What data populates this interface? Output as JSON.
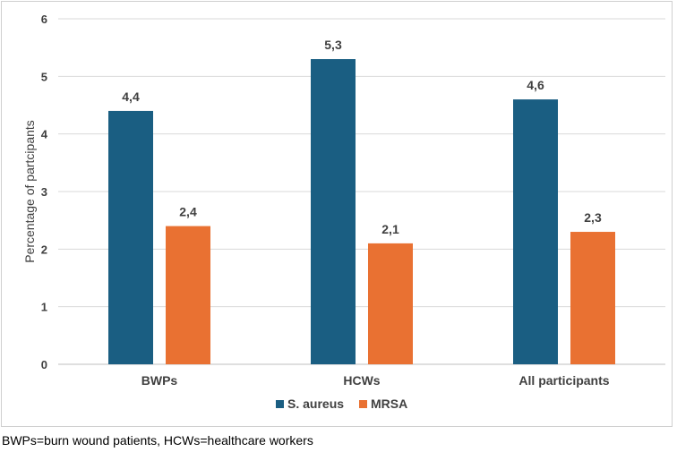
{
  "chart_data": {
    "type": "bar",
    "categories": [
      "BWPs",
      "HCWs",
      "All participants"
    ],
    "series": [
      {
        "name": "S. aureus",
        "values": [
          4.4,
          5.3,
          4.6
        ],
        "labels": [
          "4,4",
          "5,3",
          "4,6"
        ],
        "color": "#1a5e82"
      },
      {
        "name": "MRSA",
        "values": [
          2.4,
          2.1,
          2.3
        ],
        "labels": [
          "2,4",
          "2,1",
          "2,3"
        ],
        "color": "#e97132"
      }
    ],
    "ylabel": "Percentage of partcipants",
    "ylim": [
      0,
      6
    ],
    "yticks": [
      0,
      1,
      2,
      3,
      4,
      5,
      6
    ],
    "grid": true,
    "legend": "bottom"
  },
  "footnote": "BWPs=burn wound patients, HCWs=healthcare workers"
}
